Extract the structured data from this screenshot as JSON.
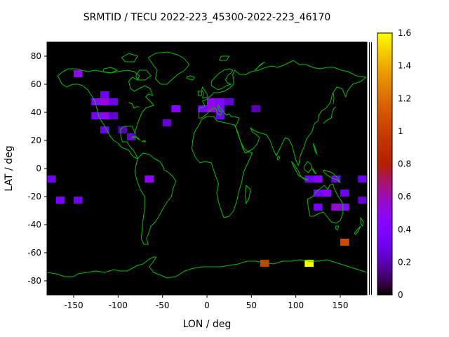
{
  "chart_data": {
    "type": "heatmap",
    "title": "SRMTID / TECU 2022-223_45300-2022-223_46170",
    "xlabel": "LON / deg",
    "ylabel": "LAT / deg",
    "xlim": [
      -180,
      180
    ],
    "ylim": [
      -90,
      90
    ],
    "xticks": [
      -150,
      -100,
      -50,
      0,
      50,
      100,
      150
    ],
    "yticks": [
      -80,
      -60,
      -40,
      -20,
      0,
      20,
      40,
      60,
      80
    ],
    "grid": false,
    "background_color": "#000000",
    "coastline_color": "#00c000",
    "cell_size_deg": {
      "lon": 10,
      "lat": 5
    },
    "colorbar": {
      "min": 0,
      "max": 1.6,
      "ticks": [
        0,
        0.2,
        0.4,
        0.6,
        0.8,
        1,
        1.2,
        1.4,
        1.6
      ],
      "palette": "black-violet-red-orange-yellow",
      "position": "right"
    },
    "cells": [
      [
        -150,
        65,
        0.5
      ],
      [
        -120,
        50,
        0.3
      ],
      [
        -130,
        45,
        0.45
      ],
      [
        -120,
        45,
        0.55
      ],
      [
        -110,
        45,
        0.3
      ],
      [
        -130,
        35,
        0.35
      ],
      [
        -120,
        35,
        0.5
      ],
      [
        -110,
        35,
        0.25
      ],
      [
        -120,
        25,
        0.3
      ],
      [
        -100,
        25,
        0.2
      ],
      [
        -90,
        20,
        0.25
      ],
      [
        -50,
        30,
        0.25
      ],
      [
        -40,
        40,
        0.45
      ],
      [
        -10,
        40,
        0.35
      ],
      [
        0,
        45,
        0.5
      ],
      [
        10,
        45,
        0.4
      ],
      [
        0,
        40,
        0.55
      ],
      [
        10,
        40,
        0.35
      ],
      [
        20,
        45,
        0.25
      ],
      [
        10,
        35,
        0.3
      ],
      [
        50,
        40,
        0.2
      ],
      [
        -70,
        -10,
        0.5
      ],
      [
        -180,
        -10,
        0.3
      ],
      [
        -170,
        -25,
        0.35
      ],
      [
        -150,
        -25,
        0.3
      ],
      [
        110,
        -10,
        0.3
      ],
      [
        120,
        -10,
        0.45
      ],
      [
        140,
        -10,
        0.3
      ],
      [
        120,
        -20,
        0.35
      ],
      [
        130,
        -20,
        0.45
      ],
      [
        150,
        -20,
        0.3
      ],
      [
        120,
        -30,
        0.35
      ],
      [
        140,
        -30,
        0.55
      ],
      [
        150,
        -30,
        0.45
      ],
      [
        170,
        -10,
        0.3
      ],
      [
        170,
        -25,
        0.25
      ],
      [
        150,
        -55,
        1.05
      ],
      [
        60,
        -70,
        1.0
      ],
      [
        110,
        -70,
        1.6
      ]
    ]
  }
}
